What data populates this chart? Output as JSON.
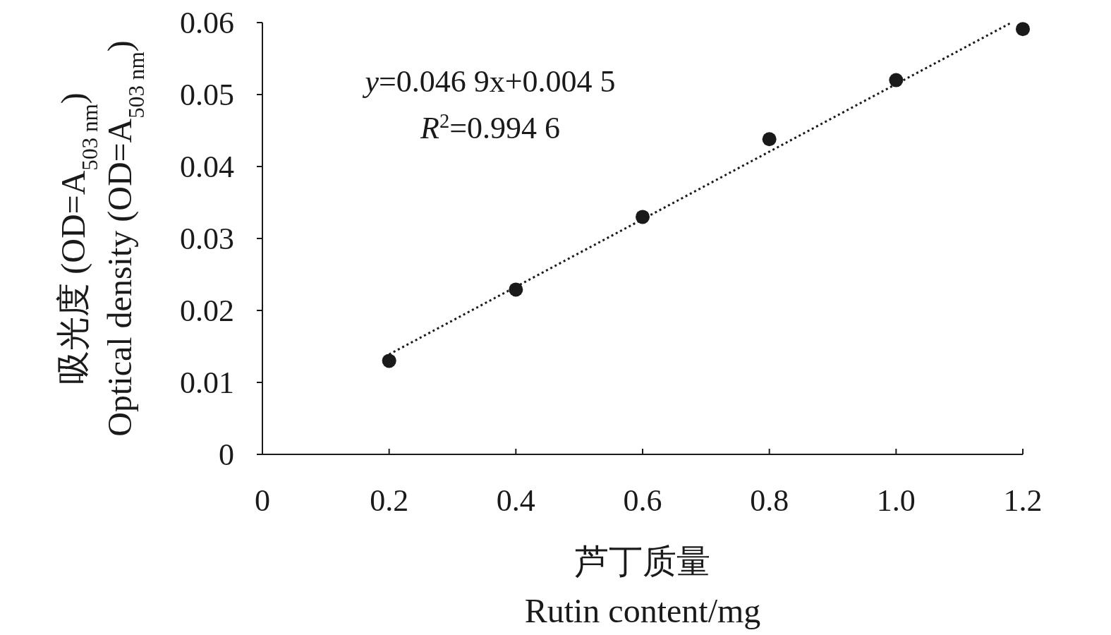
{
  "chart_data": {
    "type": "scatter",
    "xlabel": "芦丁质量\nRutin content/mg",
    "ylabel": "吸光度 (OD=A$_{503 nm}$)\nOptical density (OD=A$_{503 nm}$)",
    "x": [
      0.2,
      0.4,
      0.6,
      0.8,
      1.0,
      1.2
    ],
    "series": [
      {
        "type": "scatter",
        "color": "#1a1a1a",
        "marker": "circle",
        "values": [
          0.013,
          0.0229,
          0.033,
          0.0438,
          0.052,
          0.0591
        ]
      },
      {
        "type": "line",
        "color": "#1a1a1a",
        "line_style": "dotted",
        "marker": "none",
        "x": [
          0.2,
          1.18
        ],
        "values": [
          0.0139,
          0.0599
        ]
      }
    ],
    "annotations": [
      "*y*=0.046 9x+0.004 5",
      "*R*$^{2}$=0.994 6"
    ],
    "xlim": [
      0,
      1.2
    ],
    "ylim": [
      0,
      0.06
    ],
    "xticks": [
      0,
      0.2,
      0.4,
      0.6,
      0.8,
      {
        "value": 1.0,
        "label": "1.0"
      },
      1.2
    ],
    "yticks": [
      0,
      0.01,
      0.02,
      0.03,
      0.04,
      0.05,
      0.06
    ],
    "grid": false,
    "legend": false
  }
}
